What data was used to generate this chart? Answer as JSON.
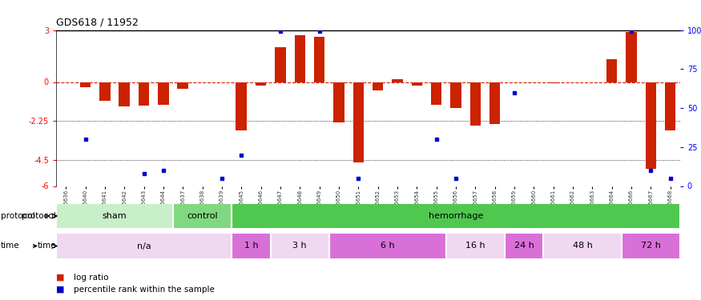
{
  "title": "GDS618 / 11952",
  "samples": [
    "GSM16636",
    "GSM16640",
    "GSM16641",
    "GSM16642",
    "GSM16643",
    "GSM16644",
    "GSM16637",
    "GSM16638",
    "GSM16639",
    "GSM16645",
    "GSM16646",
    "GSM16647",
    "GSM16648",
    "GSM16649",
    "GSM16650",
    "GSM16651",
    "GSM16652",
    "GSM16653",
    "GSM16654",
    "GSM16655",
    "GSM16656",
    "GSM16657",
    "GSM16658",
    "GSM16659",
    "GSM16660",
    "GSM16661",
    "GSM16662",
    "GSM16663",
    "GSM16664",
    "GSM16666",
    "GSM16667",
    "GSM16668"
  ],
  "log_ratio": [
    0.0,
    -0.3,
    -1.1,
    -1.4,
    -1.35,
    -1.3,
    -0.4,
    0.0,
    0.0,
    -2.8,
    -0.2,
    2.0,
    2.7,
    2.6,
    -2.35,
    -4.65,
    -0.5,
    0.15,
    -0.2,
    -1.3,
    -1.5,
    -2.5,
    -2.4,
    0.0,
    0.0,
    -0.05,
    0.0,
    0.0,
    1.3,
    2.9,
    -5.0,
    -2.8
  ],
  "percentile_rank": [
    null,
    30,
    null,
    null,
    8,
    10,
    null,
    null,
    5,
    20,
    null,
    99,
    null,
    99,
    null,
    5,
    null,
    null,
    null,
    30,
    5,
    null,
    null,
    60,
    null,
    null,
    null,
    null,
    null,
    99,
    10,
    5
  ],
  "protocol_groups": [
    {
      "label": "sham",
      "start": 0,
      "end": 5
    },
    {
      "label": "control",
      "start": 6,
      "end": 8
    },
    {
      "label": "hemorrhage",
      "start": 9,
      "end": 31
    }
  ],
  "prot_colors": {
    "sham": "#c8f0c8",
    "control": "#80d880",
    "hemorrhage": "#50c850"
  },
  "time_groups": [
    {
      "label": "n/a",
      "start": 0,
      "end": 8
    },
    {
      "label": "1 h",
      "start": 9,
      "end": 10
    },
    {
      "label": "3 h",
      "start": 11,
      "end": 13
    },
    {
      "label": "6 h",
      "start": 14,
      "end": 19
    },
    {
      "label": "16 h",
      "start": 20,
      "end": 22
    },
    {
      "label": "24 h",
      "start": 23,
      "end": 24
    },
    {
      "label": "48 h",
      "start": 25,
      "end": 28
    },
    {
      "label": "72 h",
      "start": 29,
      "end": 31
    }
  ],
  "time_colors": {
    "n/a": "#f0d8f0",
    "1 h": "#d870d8",
    "3 h": "#f0d8f0",
    "6 h": "#d870d8",
    "16 h": "#f0d8f0",
    "24 h": "#d870d8",
    "48 h": "#f0d8f0",
    "72 h": "#d870d8"
  },
  "ylim": [
    -6,
    3
  ],
  "yticks_left": [
    3,
    0,
    -2.25,
    -4.5,
    -6
  ],
  "bar_color": "#cc2200",
  "dot_color": "#0000cc",
  "zero_line_color": "#cc2200",
  "background_color": "#ffffff"
}
